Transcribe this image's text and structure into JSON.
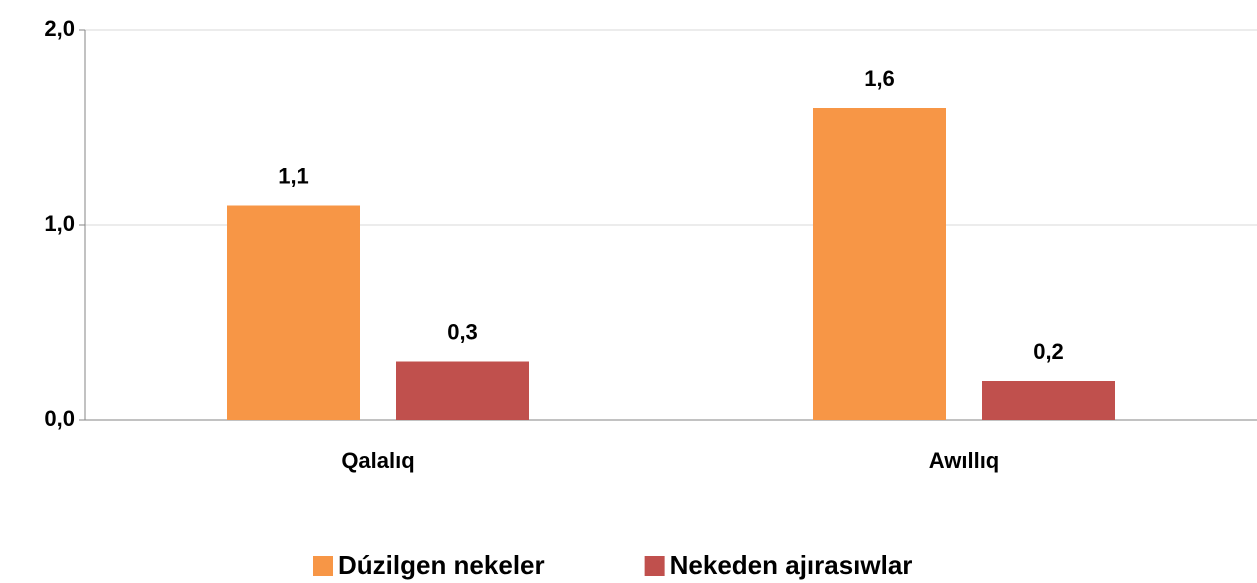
{
  "chart_data": {
    "type": "bar",
    "categories": [
      "Qalalıq",
      "Awıllıq"
    ],
    "series": [
      {
        "name": "Dúzilgen nekeler",
        "color": "#f79646",
        "values": [
          1.1,
          1.6
        ],
        "value_labels": [
          "1,1",
          "1,6"
        ]
      },
      {
        "name": "Nekeden ajırasıwlar",
        "color": "#c0504d",
        "values": [
          0.3,
          0.2
        ],
        "value_labels": [
          "0,3",
          "0,2"
        ]
      }
    ],
    "ylim": [
      0,
      2
    ],
    "yticks": [
      {
        "value": 0,
        "label": "0,0"
      },
      {
        "value": 1,
        "label": "1,0"
      },
      {
        "value": 2,
        "label": "2,0"
      }
    ],
    "grid": true,
    "legend": "bottom"
  }
}
